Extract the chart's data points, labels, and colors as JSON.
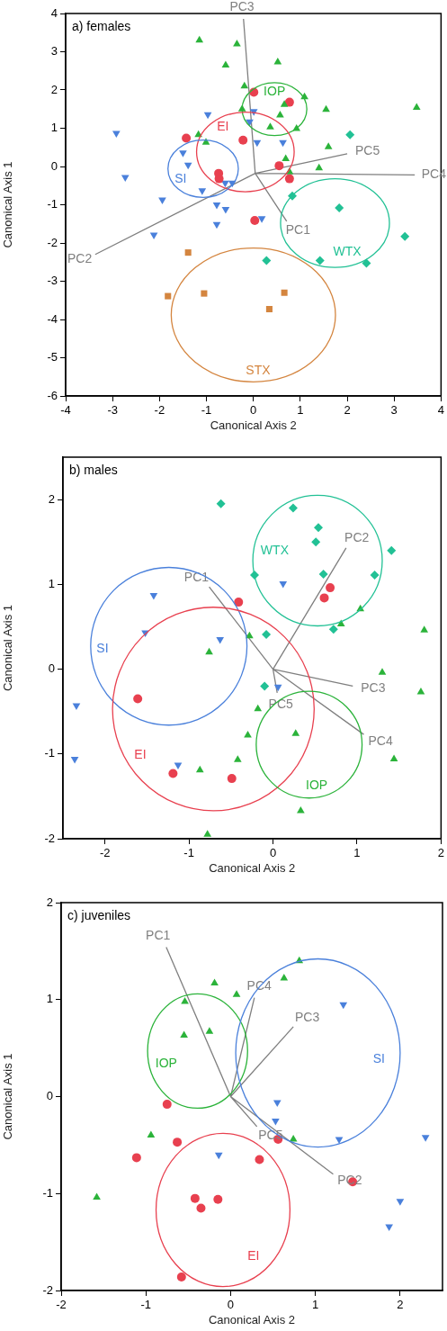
{
  "chart_data": [
    {
      "type": "scatter",
      "title": "a) females",
      "xlabel": "Canonical Axis 2",
      "ylabel": "Canonical Axis 1",
      "xlim": [
        -4,
        4
      ],
      "ylim": [
        -6,
        4
      ],
      "xticks": [
        -4,
        -3,
        -2,
        -1,
        0,
        1,
        2,
        3,
        4
      ],
      "yticks": [
        -6,
        -5,
        -4,
        -3,
        -2,
        -1,
        0,
        1,
        2,
        3,
        4
      ],
      "legend": false,
      "grid": false,
      "annotations": [
        {
          "text": "PC3",
          "x": -0.21,
          "y": 3.86
        },
        {
          "text": "PC5",
          "x": 2.0,
          "y": 0.33
        },
        {
          "text": "PC4",
          "x": 3.44,
          "y": -0.22
        },
        {
          "text": "PC1",
          "x": 0.71,
          "y": -1.43
        },
        {
          "text": "PC2",
          "x": -3.37,
          "y": -2.3
        }
      ],
      "series": [
        {
          "type": "line",
          "color": "#7f7f7f",
          "marker": "none",
          "x": [
            0.04,
            0.71,
            null,
            0.04,
            -3.37,
            null,
            0.04,
            -0.21,
            null,
            0.04,
            3.44,
            null,
            0.04,
            2.0
          ],
          "values": [
            -0.18,
            -1.43,
            null,
            -0.18,
            -2.3,
            null,
            -0.18,
            3.86,
            null,
            -0.18,
            -0.22,
            null,
            -0.18,
            0.33
          ]
        },
        {
          "name": "IOP",
          "color": "#2bb33a",
          "marker": "triangle",
          "x": [
            -1.15,
            -0.35,
            -0.59,
            0.52,
            -0.19,
            1.09,
            0.66,
            -0.24,
            0.57,
            1.55,
            3.48,
            0.36,
            0.92,
            -1.17,
            -1.01,
            1.6,
            0.69,
            1.4,
            0.77
          ],
          "values": [
            3.3,
            3.2,
            2.65,
            2.73,
            2.1,
            1.82,
            1.62,
            1.5,
            1.34,
            1.49,
            1.54,
            1.03,
            0.99,
            0.83,
            0.63,
            0.51,
            0.2,
            -0.04,
            -0.14
          ]
        },
        {
          "name": "EI",
          "color": "#e8404f",
          "marker": "circle",
          "x": [
            0.01,
            0.77,
            -1.43,
            -0.22,
            0.55,
            -0.74,
            -0.73,
            0.77,
            0.03
          ],
          "values": [
            1.94,
            1.68,
            0.74,
            0.69,
            0.02,
            -0.18,
            -0.32,
            -0.32,
            -1.41
          ]
        },
        {
          "name": "SI",
          "color": "#4a80db",
          "marker": "triangle-down",
          "x": [
            -2.92,
            -0.97,
            0.01,
            -0.08,
            0.08,
            0.63,
            -1.5,
            -1.39,
            -2.73,
            -0.6,
            -0.45,
            -1.09,
            -1.94,
            -0.78,
            -0.59,
            -0.78,
            0.18,
            -2.12
          ],
          "values": [
            0.87,
            1.36,
            1.44,
            1.17,
            0.63,
            0.63,
            0.36,
            0.04,
            -0.28,
            -0.43,
            -0.43,
            -0.63,
            -0.87,
            -1.0,
            -1.12,
            -1.51,
            -1.36,
            -1.79
          ]
        },
        {
          "name": "WTX",
          "color": "#22c195",
          "marker": "diamond",
          "x": [
            2.06,
            0.83,
            1.83,
            3.23,
            0.28,
            1.42,
            2.41
          ],
          "values": [
            0.83,
            -0.77,
            -1.08,
            -1.83,
            -2.46,
            -2.46,
            -2.53
          ]
        },
        {
          "name": "STX",
          "color": "#d4853f",
          "marker": "square",
          "x": [
            -1.39,
            -1.82,
            -1.05,
            0.66,
            0.34
          ],
          "values": [
            -2.25,
            -3.39,
            -3.32,
            -3.3,
            -3.73
          ]
        }
      ]
    },
    {
      "type": "scatter",
      "title": "b) males",
      "xlabel": "Canonical Axis 2",
      "ylabel": "Canonical Axis 1",
      "xlim": [
        -2.5,
        2
      ],
      "ylim": [
        -2,
        2.5
      ],
      "xticks": [
        -2,
        -1,
        0,
        1,
        2
      ],
      "yticks": [
        -2,
        -1,
        0,
        1,
        2
      ],
      "legend": false,
      "grid": false,
      "annotations": [
        {
          "text": "PC1",
          "x": -0.76,
          "y": 0.97
        },
        {
          "text": "PC2",
          "x": 0.87,
          "y": 1.43
        },
        {
          "text": "PC3",
          "x": 0.95,
          "y": -0.2
        },
        {
          "text": "PC4",
          "x": 1.08,
          "y": -0.77
        },
        {
          "text": "PC5",
          "x": 0.05,
          "y": -0.28
        }
      ],
      "series": [
        {
          "type": "line",
          "color": "#7f7f7f",
          "marker": "none",
          "x": [
            0,
            -0.76,
            null,
            0,
            0.87,
            null,
            0,
            0.95,
            null,
            0,
            1.08,
            null,
            0,
            0.05
          ],
          "values": [
            0,
            0.97,
            null,
            0,
            1.43,
            null,
            0,
            -0.2,
            null,
            0,
            -0.77,
            null,
            0,
            -0.28
          ]
        },
        {
          "name": "WTX",
          "color": "#22c195",
          "marker": "diamond",
          "x": [
            -0.62,
            0.24,
            0.54,
            0.51,
            1.41,
            -0.22,
            0.6,
            1.21,
            -0.08,
            0.72,
            -0.1
          ],
          "values": [
            1.95,
            1.9,
            1.67,
            1.5,
            1.4,
            1.11,
            1.12,
            1.11,
            0.41,
            0.47,
            -0.2
          ]
        },
        {
          "name": "SI",
          "color": "#4a80db",
          "marker": "triangle-down",
          "x": [
            0.12,
            -1.42,
            -1.52,
            -0.63,
            -2.34,
            -2.36,
            -1.13,
            0.06
          ],
          "values": [
            1.01,
            0.87,
            0.43,
            0.35,
            -0.43,
            -1.06,
            -1.13,
            -0.21
          ]
        },
        {
          "name": "EI",
          "color": "#e8404f",
          "marker": "circle",
          "x": [
            -0.41,
            0.68,
            0.61,
            -1.61,
            -1.19,
            -0.49
          ],
          "values": [
            0.79,
            0.96,
            0.84,
            -0.35,
            -1.23,
            -1.29
          ]
        },
        {
          "name": "IOP",
          "color": "#2bb33a",
          "marker": "triangle",
          "x": [
            1.04,
            0.81,
            1.8,
            -0.28,
            -0.76,
            1.3,
            1.76,
            -0.18,
            -0.3,
            0.27,
            -0.42,
            -0.87,
            1.44,
            0.33,
            -0.78
          ],
          "values": [
            0.71,
            0.53,
            0.46,
            0.39,
            0.2,
            -0.04,
            -0.27,
            -0.47,
            -0.78,
            -0.76,
            -1.07,
            -1.19,
            -1.06,
            -1.67,
            -1.95
          ]
        }
      ]
    },
    {
      "type": "scatter",
      "title": "c) juveniles",
      "xlabel": "Canonical Axis 2",
      "ylabel": "Canonical Axis 1",
      "xlim": [
        -2,
        2.5
      ],
      "ylim": [
        -2,
        2
      ],
      "xticks": [
        -2,
        -1,
        0,
        1,
        2
      ],
      "yticks": [
        -2,
        -1,
        0,
        1,
        2
      ],
      "legend": false,
      "grid": false,
      "annotations": [
        {
          "text": "PC1",
          "x": -0.76,
          "y": 1.54
        },
        {
          "text": "PC4",
          "x": 0.28,
          "y": 1.02
        },
        {
          "text": "PC3",
          "x": 0.74,
          "y": 0.72
        },
        {
          "text": "PC5",
          "x": 0.31,
          "y": -0.31
        },
        {
          "text": "PC2",
          "x": 1.21,
          "y": -0.8
        }
      ],
      "series": [
        {
          "type": "line",
          "color": "#7f7f7f",
          "marker": "none",
          "x": [
            0,
            -0.76,
            null,
            0,
            1.21,
            null,
            0,
            0.74,
            null,
            0,
            0.28,
            null,
            0,
            0.31
          ],
          "values": [
            0,
            1.54,
            null,
            0,
            -0.8,
            null,
            0,
            0.72,
            null,
            0,
            1.02,
            null,
            0,
            -0.31
          ]
        },
        {
          "name": "IOP",
          "color": "#2bb33a",
          "marker": "triangle",
          "x": [
            0.81,
            0.63,
            -0.19,
            0.07,
            -0.54,
            -0.55,
            -0.25,
            -0.94,
            0.74,
            -1.58
          ],
          "values": [
            1.4,
            1.22,
            1.17,
            1.05,
            0.98,
            0.63,
            0.67,
            -0.4,
            -0.44,
            -1.04
          ]
        },
        {
          "name": "SI",
          "color": "#4a80db",
          "marker": "triangle-down",
          "x": [
            1.33,
            0.55,
            0.53,
            1.28,
            2.3,
            -0.14,
            2.0,
            1.87
          ],
          "values": [
            0.95,
            -0.06,
            -0.25,
            -0.44,
            -0.42,
            -0.6,
            -1.08,
            -1.34
          ]
        },
        {
          "name": "EI",
          "color": "#e8404f",
          "marker": "circle",
          "x": [
            -0.75,
            -0.63,
            -1.11,
            0.56,
            0.34,
            1.44,
            -0.42,
            -0.15,
            -0.35,
            -0.58
          ],
          "values": [
            -0.08,
            -0.47,
            -0.63,
            -0.44,
            -0.65,
            -0.88,
            -1.05,
            -1.06,
            -1.15,
            -1.86
          ]
        }
      ]
    }
  ]
}
